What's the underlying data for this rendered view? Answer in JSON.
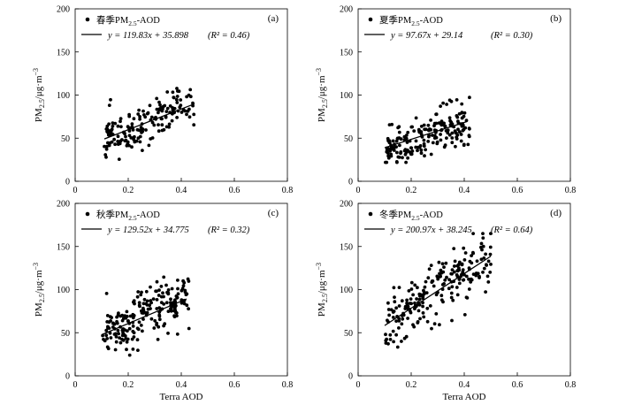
{
  "chart_data": [
    {
      "type": "scatter",
      "panel_tag": "(a)",
      "legend_marker": "春季",
      "legend_sub": "2.5",
      "legend_suffix": "-AOD",
      "fit": {
        "slope": 119.83,
        "intercept": 35.898,
        "r2": 0.46
      },
      "fit_text": "y = 119.83x + 35.898",
      "r2_text": "(R² = 0.46)",
      "xlim": [
        0,
        0.8
      ],
      "ylim": [
        0,
        200
      ],
      "xticks": [
        "0",
        "0.2",
        "0.4",
        "0.6",
        "0.8"
      ],
      "yticks": [
        "0",
        "50",
        "100",
        "150",
        "200"
      ],
      "ylabel": "PM2.5/μg·m⁻³",
      "xlabel": "",
      "fit_range": [
        0.11,
        0.45
      ],
      "cluster": {
        "x0": 0.11,
        "x1": 0.45,
        "sd": 12,
        "n": 170,
        "seed": 11
      }
    },
    {
      "type": "scatter",
      "panel_tag": "(b)",
      "legend_marker": "夏季",
      "legend_sub": "2.5",
      "legend_suffix": "-AOD",
      "fit": {
        "slope": 97.67,
        "intercept": 29.14,
        "r2": 0.3
      },
      "fit_text": "y = 97.67x + 29.14",
      "r2_text": "(R² = 0.30)",
      "xlim": [
        0,
        0.8
      ],
      "ylim": [
        0,
        200
      ],
      "xticks": [
        "0",
        "0.2",
        "0.4",
        "0.6",
        "0.8"
      ],
      "yticks": [
        "0",
        "50",
        "100",
        "150",
        "200"
      ],
      "ylabel": "PM2.5/μg·m⁻³",
      "xlabel": "",
      "fit_range": [
        0.1,
        0.41
      ],
      "cluster": {
        "x0": 0.1,
        "x1": 0.42,
        "sd": 12,
        "n": 200,
        "seed": 23
      }
    },
    {
      "type": "scatter",
      "panel_tag": "(c)",
      "legend_marker": "秋季",
      "legend_sub": "2.5",
      "legend_suffix": "-AOD",
      "fit": {
        "slope": 129.52,
        "intercept": 34.775,
        "r2": 0.32
      },
      "fit_text": "y = 129.52x + 34.775",
      "r2_text": "(R² = 0.32)",
      "xlim": [
        0,
        0.8
      ],
      "ylim": [
        0,
        200
      ],
      "xticks": [
        "0",
        "0.2",
        "0.4",
        "0.6",
        "0.8"
      ],
      "yticks": [
        "0",
        "50",
        "100",
        "150",
        "200"
      ],
      "ylabel": "PM2.5/μg·m⁻³",
      "xlabel": "Terra AOD",
      "fit_range": [
        0.1,
        0.42
      ],
      "cluster": {
        "x0": 0.1,
        "x1": 0.43,
        "sd": 15,
        "n": 210,
        "seed": 37
      }
    },
    {
      "type": "scatter",
      "panel_tag": "(d)",
      "legend_marker": "冬季",
      "legend_sub": "2.5",
      "legend_suffix": "-AOD",
      "fit": {
        "slope": 200.97,
        "intercept": 38.245,
        "r2": 0.64
      },
      "fit_text": "y = 200.97x + 38.245",
      "r2_text": "(R² = 0.64)",
      "xlim": [
        0,
        0.8
      ],
      "ylim": [
        0,
        200
      ],
      "xticks": [
        "0",
        "0.2",
        "0.4",
        "0.6",
        "0.8"
      ],
      "yticks": [
        "0",
        "50",
        "100",
        "150",
        "200"
      ],
      "ylabel": "PM2.5/μg·m⁻³",
      "xlabel": "Terra AOD",
      "fit_range": [
        0.1,
        0.5
      ],
      "cluster": {
        "x0": 0.1,
        "x1": 0.5,
        "sd": 17,
        "n": 220,
        "seed": 53
      }
    }
  ]
}
